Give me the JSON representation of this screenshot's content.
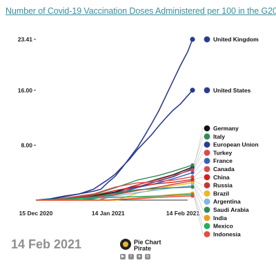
{
  "chart_data": {
    "type": "line",
    "title": "Number of Covid-19 Vaccination Doses Administered per 100 in the G20",
    "date_label": "14 Feb 2021",
    "x_range": [
      "2020-12-15",
      "2021-02-16"
    ],
    "x_ticks": [
      {
        "value": "2020-12-15",
        "label": "15 Dec 2020"
      },
      {
        "value": "2021-01-14",
        "label": "14 Jan 2021"
      },
      {
        "value": "2021-02-14",
        "label": "14 Feb 2021"
      }
    ],
    "y_ticks": [
      {
        "value": 8.0,
        "label": "8.00"
      },
      {
        "value": 16.0,
        "label": "16.00"
      },
      {
        "value": 23.41,
        "label": "23.41"
      }
    ],
    "ylim": [
      0,
      23.41
    ],
    "grid": false,
    "series": [
      {
        "name": "United Kingdom",
        "color": "#2b3a8f",
        "values": [
          [
            0,
            0
          ],
          [
            6,
            0.2
          ],
          [
            12,
            0.6
          ],
          [
            18,
            0.9
          ],
          [
            24,
            1.3
          ],
          [
            27,
            1.6
          ],
          [
            30,
            2.6
          ],
          [
            33,
            3.5
          ],
          [
            36,
            4.8
          ],
          [
            39,
            6.2
          ],
          [
            42,
            7.6
          ],
          [
            45,
            9.3
          ],
          [
            48,
            11.1
          ],
          [
            51,
            13.0
          ],
          [
            54,
            15.2
          ],
          [
            57,
            17.4
          ],
          [
            60,
            19.6
          ],
          [
            63,
            21.6
          ],
          [
            65,
            23.41
          ]
        ]
      },
      {
        "name": "United States",
        "color": "#2b3a8f",
        "values": [
          [
            0,
            0
          ],
          [
            6,
            0.1
          ],
          [
            12,
            0.5
          ],
          [
            18,
            0.9
          ],
          [
            24,
            1.6
          ],
          [
            27,
            2.3
          ],
          [
            30,
            3.0
          ],
          [
            33,
            3.8
          ],
          [
            36,
            4.9
          ],
          [
            39,
            6.0
          ],
          [
            42,
            7.3
          ],
          [
            45,
            8.4
          ],
          [
            48,
            9.5
          ],
          [
            51,
            10.8
          ],
          [
            54,
            12.0
          ],
          [
            57,
            13.1
          ],
          [
            60,
            14.0
          ],
          [
            63,
            15.2
          ],
          [
            65,
            16.0
          ]
        ]
      },
      {
        "name": "Germany",
        "color": "#111111",
        "values": [
          [
            0,
            0
          ],
          [
            12,
            0.2
          ],
          [
            24,
            0.6
          ],
          [
            33,
            1.2
          ],
          [
            42,
            2.2
          ],
          [
            51,
            3.1
          ],
          [
            57,
            3.7
          ],
          [
            65,
            4.8
          ]
        ]
      },
      {
        "name": "Italy",
        "color": "#2e8b57",
        "values": [
          [
            0,
            0
          ],
          [
            12,
            0.2
          ],
          [
            24,
            0.8
          ],
          [
            33,
            1.8
          ],
          [
            42,
            2.9
          ],
          [
            51,
            3.6
          ],
          [
            57,
            4.2
          ],
          [
            65,
            5.1
          ]
        ]
      },
      {
        "name": "European Union",
        "color": "#2b3a8f",
        "values": [
          [
            0,
            0
          ],
          [
            12,
            0.1
          ],
          [
            24,
            0.4
          ],
          [
            33,
            1.1
          ],
          [
            42,
            1.9
          ],
          [
            51,
            2.8
          ],
          [
            57,
            3.4
          ],
          [
            65,
            4.6
          ]
        ]
      },
      {
        "name": "Turkey",
        "color": "#e04848",
        "values": [
          [
            0,
            0
          ],
          [
            26,
            0
          ],
          [
            30,
            0.4
          ],
          [
            36,
            1.3
          ],
          [
            42,
            2.2
          ],
          [
            51,
            3.0
          ],
          [
            57,
            3.6
          ],
          [
            65,
            4.4
          ]
        ]
      },
      {
        "name": "France",
        "color": "#3d5fb8",
        "values": [
          [
            0,
            0
          ],
          [
            18,
            0
          ],
          [
            24,
            0.2
          ],
          [
            33,
            0.8
          ],
          [
            42,
            1.8
          ],
          [
            51,
            2.5
          ],
          [
            57,
            3.1
          ],
          [
            65,
            4.0
          ]
        ]
      },
      {
        "name": "Canada",
        "color": "#e04848",
        "values": [
          [
            0,
            0
          ],
          [
            6,
            0
          ],
          [
            12,
            0.3
          ],
          [
            24,
            0.9
          ],
          [
            33,
            1.9
          ],
          [
            42,
            2.5
          ],
          [
            51,
            2.7
          ],
          [
            57,
            2.9
          ],
          [
            65,
            3.4
          ]
        ]
      },
      {
        "name": "China",
        "color": "#d62020",
        "values": [
          [
            0,
            0
          ],
          [
            12,
            0.1
          ],
          [
            24,
            0.7
          ],
          [
            33,
            1.4
          ],
          [
            42,
            2.0
          ],
          [
            51,
            2.4
          ],
          [
            57,
            2.6
          ],
          [
            65,
            3.0
          ]
        ]
      },
      {
        "name": "Russia",
        "color": "#c0392b",
        "values": [
          [
            0,
            0
          ],
          [
            12,
            0.1
          ],
          [
            24,
            0.4
          ],
          [
            33,
            0.8
          ],
          [
            42,
            1.4
          ],
          [
            51,
            1.9
          ],
          [
            57,
            2.3
          ],
          [
            65,
            2.8
          ]
        ]
      },
      {
        "name": "Brazil",
        "color": "#f2b71b",
        "values": [
          [
            0,
            0
          ],
          [
            33,
            0
          ],
          [
            36,
            0.3
          ],
          [
            42,
            1.0
          ],
          [
            51,
            1.7
          ],
          [
            57,
            2.1
          ],
          [
            65,
            2.5
          ]
        ]
      },
      {
        "name": "Argentina",
        "color": "#7fb7e8",
        "values": [
          [
            0,
            0
          ],
          [
            12,
            0.1
          ],
          [
            24,
            0.3
          ],
          [
            33,
            0.6
          ],
          [
            42,
            1.1
          ],
          [
            51,
            1.5
          ],
          [
            57,
            1.8
          ],
          [
            65,
            2.1
          ]
        ]
      },
      {
        "name": "Saudi Arabia",
        "color": "#2e8b57",
        "values": [
          [
            0,
            0
          ],
          [
            12,
            0.1
          ],
          [
            24,
            0.5
          ],
          [
            33,
            1.0
          ],
          [
            42,
            1.5
          ],
          [
            51,
            1.7
          ],
          [
            57,
            1.8
          ],
          [
            65,
            1.9
          ]
        ]
      },
      {
        "name": "India",
        "color": "#f39c12",
        "values": [
          [
            0,
            0
          ],
          [
            33,
            0
          ],
          [
            36,
            0.1
          ],
          [
            42,
            0.3
          ],
          [
            51,
            0.6
          ],
          [
            57,
            0.8
          ],
          [
            65,
            1.0
          ]
        ]
      },
      {
        "name": "Mexico",
        "color": "#27ae60",
        "values": [
          [
            0,
            0
          ],
          [
            12,
            0.1
          ],
          [
            24,
            0.3
          ],
          [
            33,
            0.4
          ],
          [
            42,
            0.5
          ],
          [
            51,
            0.6
          ],
          [
            57,
            0.7
          ],
          [
            65,
            0.8
          ]
        ]
      },
      {
        "name": "Indonesia",
        "color": "#e74c3c",
        "values": [
          [
            0,
            0
          ],
          [
            30,
            0
          ],
          [
            33,
            0.1
          ],
          [
            42,
            0.2
          ],
          [
            51,
            0.4
          ],
          [
            57,
            0.5
          ],
          [
            65,
            0.6
          ]
        ]
      }
    ]
  },
  "branding": {
    "line1": "Pie Chart",
    "line2": "Pirate",
    "social_icons": [
      "youtube-icon",
      "facebook-icon",
      "reddit-icon",
      "instagram-icon"
    ]
  }
}
